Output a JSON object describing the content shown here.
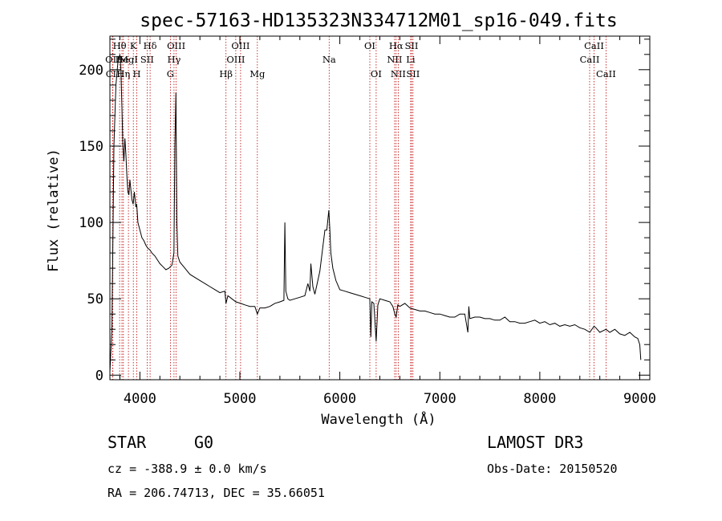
{
  "chart_data": {
    "type": "line",
    "title": "spec-57163-HD135323N334712M01_sp16-049.fits",
    "xlabel": "Wavelength (Å)",
    "ylabel": "Flux (relative)",
    "xlim": [
      3700,
      9100
    ],
    "ylim": [
      -3,
      222
    ],
    "x_ticks": [
      4000,
      5000,
      6000,
      7000,
      8000,
      9000
    ],
    "x_tick_labels": [
      "4000",
      "5000",
      "6000",
      "7000",
      "8000",
      "9000"
    ],
    "y_ticks": [
      0,
      50,
      100,
      150,
      200
    ],
    "y_tick_labels": [
      "0",
      "50",
      "100",
      "150",
      "200"
    ],
    "grid": false,
    "series": [
      {
        "x": [
          3700,
          3720,
          3740,
          3760,
          3780,
          3800,
          3810,
          3820,
          3830,
          3840,
          3850,
          3860,
          3870,
          3880,
          3890,
          3900,
          3920,
          3933,
          3945,
          3960,
          3968,
          3980,
          4000,
          4020,
          4040,
          4060,
          4080,
          4101,
          4120,
          4150,
          4180,
          4200,
          4230,
          4260,
          4290,
          4320,
          4340,
          4350,
          4360,
          4370,
          4380,
          4400,
          4450,
          4500,
          4550,
          4600,
          4650,
          4700,
          4750,
          4800,
          4850,
          4861,
          4880,
          4920,
          4960,
          5007,
          5050,
          5100,
          5150,
          5175,
          5200,
          5250,
          5300,
          5350,
          5400,
          5440,
          5450,
          5460,
          5480,
          5500,
          5550,
          5600,
          5650,
          5680,
          5700,
          5710,
          5730,
          5750,
          5800,
          5850,
          5870,
          5890,
          5900,
          5910,
          5930,
          5960,
          6000,
          6050,
          6100,
          6150,
          6200,
          6250,
          6300,
          6310,
          6320,
          6340,
          6363,
          6380,
          6400,
          6450,
          6500,
          6530,
          6550,
          6563,
          6580,
          6600,
          6650,
          6700,
          6750,
          6800,
          6850,
          6900,
          6950,
          7000,
          7050,
          7100,
          7150,
          7200,
          7250,
          7280,
          7290,
          7300,
          7350,
          7400,
          7450,
          7500,
          7550,
          7600,
          7650,
          7700,
          7750,
          7800,
          7850,
          7900,
          7950,
          8000,
          8050,
          8100,
          8150,
          8200,
          8250,
          8300,
          8350,
          8400,
          8450,
          8500,
          8542,
          8560,
          8600,
          8662,
          8700,
          8750,
          8800,
          8850,
          8900,
          8950,
          8980,
          9000,
          9010
        ],
        "y": [
          2,
          30,
          150,
          190,
          205,
          210,
          200,
          175,
          150,
          140,
          155,
          145,
          130,
          120,
          118,
          128,
          115,
          112,
          120,
          110,
          112,
          100,
          95,
          90,
          88,
          85,
          83,
          82,
          80,
          78,
          75,
          73,
          71,
          69,
          70,
          72,
          80,
          150,
          185,
          100,
          78,
          74,
          70,
          66,
          64,
          62,
          60,
          58,
          56,
          54,
          55,
          47,
          52,
          50,
          48,
          47,
          46,
          45,
          45,
          40,
          44,
          44,
          45,
          47,
          48,
          49,
          100,
          55,
          50,
          49,
          50,
          51,
          52,
          60,
          55,
          73,
          58,
          53,
          68,
          95,
          95,
          108,
          95,
          80,
          70,
          62,
          56,
          55,
          54,
          53,
          52,
          51,
          50,
          25,
          48,
          47,
          22,
          46,
          50,
          49,
          48,
          45,
          40,
          38,
          46,
          45,
          47,
          44,
          43,
          42,
          42,
          41,
          40,
          40,
          39,
          38,
          38,
          40,
          40,
          28,
          45,
          37,
          38,
          38,
          37,
          37,
          36,
          36,
          38,
          35,
          35,
          34,
          34,
          35,
          36,
          34,
          35,
          33,
          34,
          32,
          33,
          32,
          33,
          31,
          30,
          28,
          32,
          31,
          28,
          30,
          28,
          30,
          27,
          26,
          28,
          25,
          24,
          20,
          10
        ]
      }
    ],
    "line_markers": [
      {
        "label": "Hθ",
        "wave": 3797,
        "row": 0
      },
      {
        "label": "OII",
        "wave": 3727,
        "row": 1
      },
      {
        "label": "He",
        "wave": 3820,
        "row": 1
      },
      {
        "label": "CII",
        "wave": 3730,
        "row": 2
      },
      {
        "label": "Hη",
        "wave": 3835,
        "row": 2
      },
      {
        "label": "K",
        "wave": 3934,
        "row": 0
      },
      {
        "label": "H",
        "wave": 3969,
        "row": 2
      },
      {
        "label": "MgI",
        "wave": 3885,
        "row": 1
      },
      {
        "label": "SII",
        "wave": 4072,
        "row": 1
      },
      {
        "label": "Hδ",
        "wave": 4102,
        "row": 0
      },
      {
        "label": "OIII",
        "wave": 4363,
        "row": 0
      },
      {
        "label": "Hγ",
        "wave": 4341,
        "row": 1
      },
      {
        "label": "G",
        "wave": 4305,
        "row": 2
      },
      {
        "label": "Hβ",
        "wave": 4861,
        "row": 2
      },
      {
        "label": "OIII",
        "wave": 5007,
        "row": 0
      },
      {
        "label": "OIII",
        "wave": 4959,
        "row": 1
      },
      {
        "label": "Mg",
        "wave": 5175,
        "row": 2
      },
      {
        "label": "Na",
        "wave": 5893,
        "row": 1
      },
      {
        "label": "OI",
        "wave": 6300,
        "row": 0
      },
      {
        "label": "OI",
        "wave": 6363,
        "row": 2
      },
      {
        "label": "Hα",
        "wave": 6563,
        "row": 0
      },
      {
        "label": "NII",
        "wave": 6548,
        "row": 1
      },
      {
        "label": "NII",
        "wave": 6584,
        "row": 2
      },
      {
        "label": "SII",
        "wave": 6717,
        "row": 0
      },
      {
        "label": "Li",
        "wave": 6708,
        "row": 1
      },
      {
        "label": "SII",
        "wave": 6731,
        "row": 2
      },
      {
        "label": "CaII",
        "wave": 8542,
        "row": 0
      },
      {
        "label": "CaII",
        "wave": 8498,
        "row": 1
      },
      {
        "label": "CaII",
        "wave": 8662,
        "row": 2
      }
    ],
    "line_marker_waves": [
      3727,
      3730,
      3797,
      3820,
      3835,
      3885,
      3934,
      3969,
      4072,
      4102,
      4305,
      4341,
      4363,
      4861,
      4959,
      5007,
      5175,
      5893,
      6300,
      6363,
      6548,
      6563,
      6584,
      6708,
      6717,
      6731,
      8498,
      8542,
      8662
    ],
    "marker_color": "#c00000"
  },
  "info": {
    "object_class": "STAR",
    "subclass": "G0",
    "survey": "LAMOST DR3",
    "redshift": "cz = -388.9 ± 0.0 km/s",
    "obs_date": "Obs-Date: 20150520",
    "coords": "RA = 206.74713, DEC =  35.66051"
  }
}
